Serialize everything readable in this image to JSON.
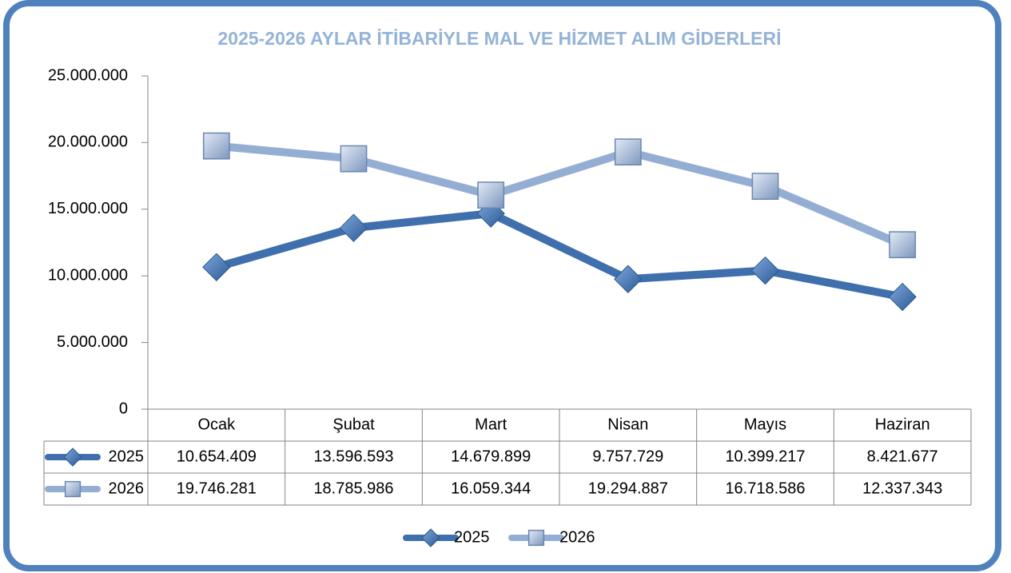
{
  "chart_data": {
    "type": "line",
    "title": "2025-2026 AYLAR İTİBARİYLE MAL VE HİZMET ALIM GİDERLERİ",
    "categories": [
      "Ocak",
      "Şubat",
      "Mart",
      "Nisan",
      "Mayıs",
      "Haziran"
    ],
    "series": [
      {
        "name": "2025",
        "color": "#3f6fac",
        "marker": "diamond",
        "values": [
          10654409,
          13596593,
          14679899,
          9757729,
          10399217,
          8421677
        ],
        "value_labels": [
          "10.654.409",
          "13.596.593",
          "14.679.899",
          "9.757.729",
          "10.399.217",
          "8.421.677"
        ]
      },
      {
        "name": "2026",
        "color": "#94aed3",
        "marker": "square",
        "values": [
          19746281,
          18785986,
          16059344,
          19294887,
          16718586,
          12337343
        ],
        "value_labels": [
          "19.746.281",
          "18.785.986",
          "16.059.344",
          "19.294.887",
          "16.718.586",
          "12.337.343"
        ]
      }
    ],
    "ylim": [
      0,
      25000000
    ],
    "yticks": [
      0,
      {
        "value": 5000000,
        "label": "5.000.000"
      },
      {
        "value": 10000000,
        "label": "10.000.000"
      },
      {
        "value": 15000000,
        "label": "15.000.000"
      },
      {
        "value": 20000000,
        "label": "20.000.000"
      },
      {
        "value": 25000000,
        "label": "25.000.000"
      }
    ],
    "grid": false,
    "legend": "bottom",
    "data_table": true
  }
}
